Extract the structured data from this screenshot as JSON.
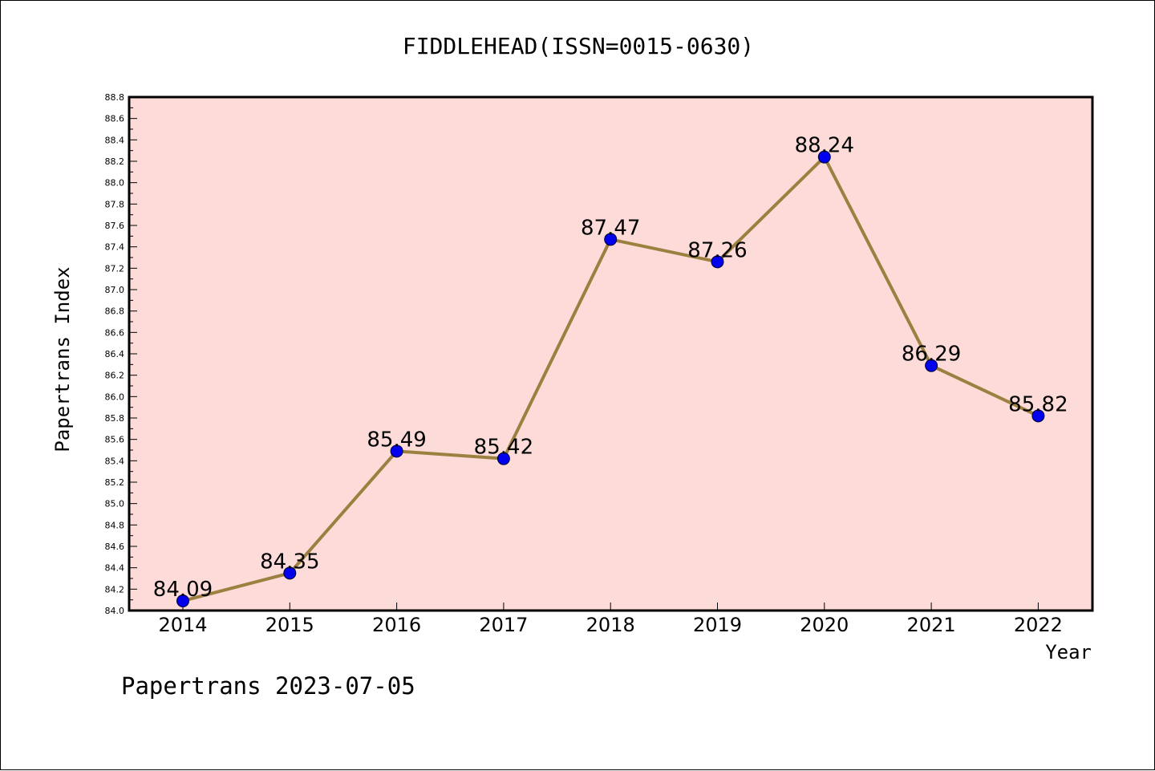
{
  "chart_data": {
    "type": "line",
    "title": "FIDDLEHEAD(ISSN=0015-0630)",
    "xlabel": "Year",
    "ylabel": "Papertrans Index",
    "categories": [
      "2014",
      "2015",
      "2016",
      "2017",
      "2018",
      "2019",
      "2020",
      "2021",
      "2022"
    ],
    "values": [
      84.09,
      84.35,
      85.49,
      85.42,
      87.47,
      87.26,
      88.24,
      86.29,
      85.82
    ],
    "data_labels": [
      "84.09",
      "84.35",
      "85.49",
      "85.42",
      "87.47",
      "87.26",
      "88.24",
      "86.29",
      "85.82"
    ],
    "ylim": [
      84.0,
      88.8
    ],
    "yticks": [
      "84.0",
      "84.2",
      "84.4",
      "84.6",
      "84.8",
      "85.0",
      "85.2",
      "85.4",
      "85.6",
      "85.8",
      "86.0",
      "86.2",
      "86.4",
      "86.6",
      "86.8",
      "87.0",
      "87.2",
      "87.4",
      "87.6",
      "87.8",
      "88.0",
      "88.2",
      "88.4",
      "88.6",
      "88.8"
    ],
    "grid": false,
    "legend": "none",
    "colors": {
      "plot_background": "#fddbd8",
      "line": "#9b8040",
      "marker": "#0000ee"
    }
  },
  "footer": "Papertrans 2023-07-05"
}
